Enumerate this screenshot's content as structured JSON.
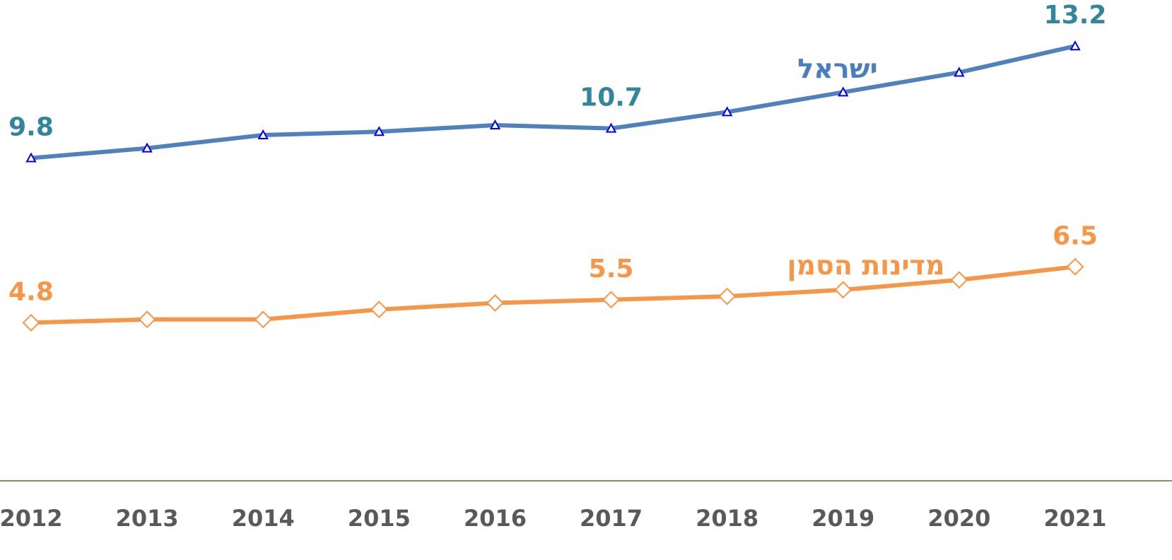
{
  "chart_data": {
    "type": "line",
    "categories": [
      "2012",
      "2013",
      "2014",
      "2015",
      "2016",
      "2017",
      "2018",
      "2019",
      "2020",
      "2021"
    ],
    "series": [
      {
        "name": "ישראל",
        "color": "#4f81bd",
        "label_color": "#4a7ebf",
        "value_label_color": "#31859c",
        "marker": "triangle",
        "marker_color": "#0000ee",
        "values": [
          9.8,
          10.1,
          10.5,
          10.6,
          10.8,
          10.7,
          11.2,
          11.8,
          12.4,
          13.2
        ],
        "data_labels": [
          0,
          5,
          9
        ]
      },
      {
        "name": "מדינות הסמן",
        "color": "#f79646",
        "label_color": "#f79646",
        "value_label_color": "#f79646",
        "marker": "diamond",
        "marker_color": "#f79646",
        "values": [
          4.8,
          4.9,
          4.9,
          5.2,
          5.4,
          5.5,
          5.6,
          5.8,
          6.1,
          6.5
        ],
        "data_labels": [
          0,
          5,
          9
        ]
      }
    ],
    "ylim": [
      0,
      14.6
    ],
    "grid": false
  }
}
